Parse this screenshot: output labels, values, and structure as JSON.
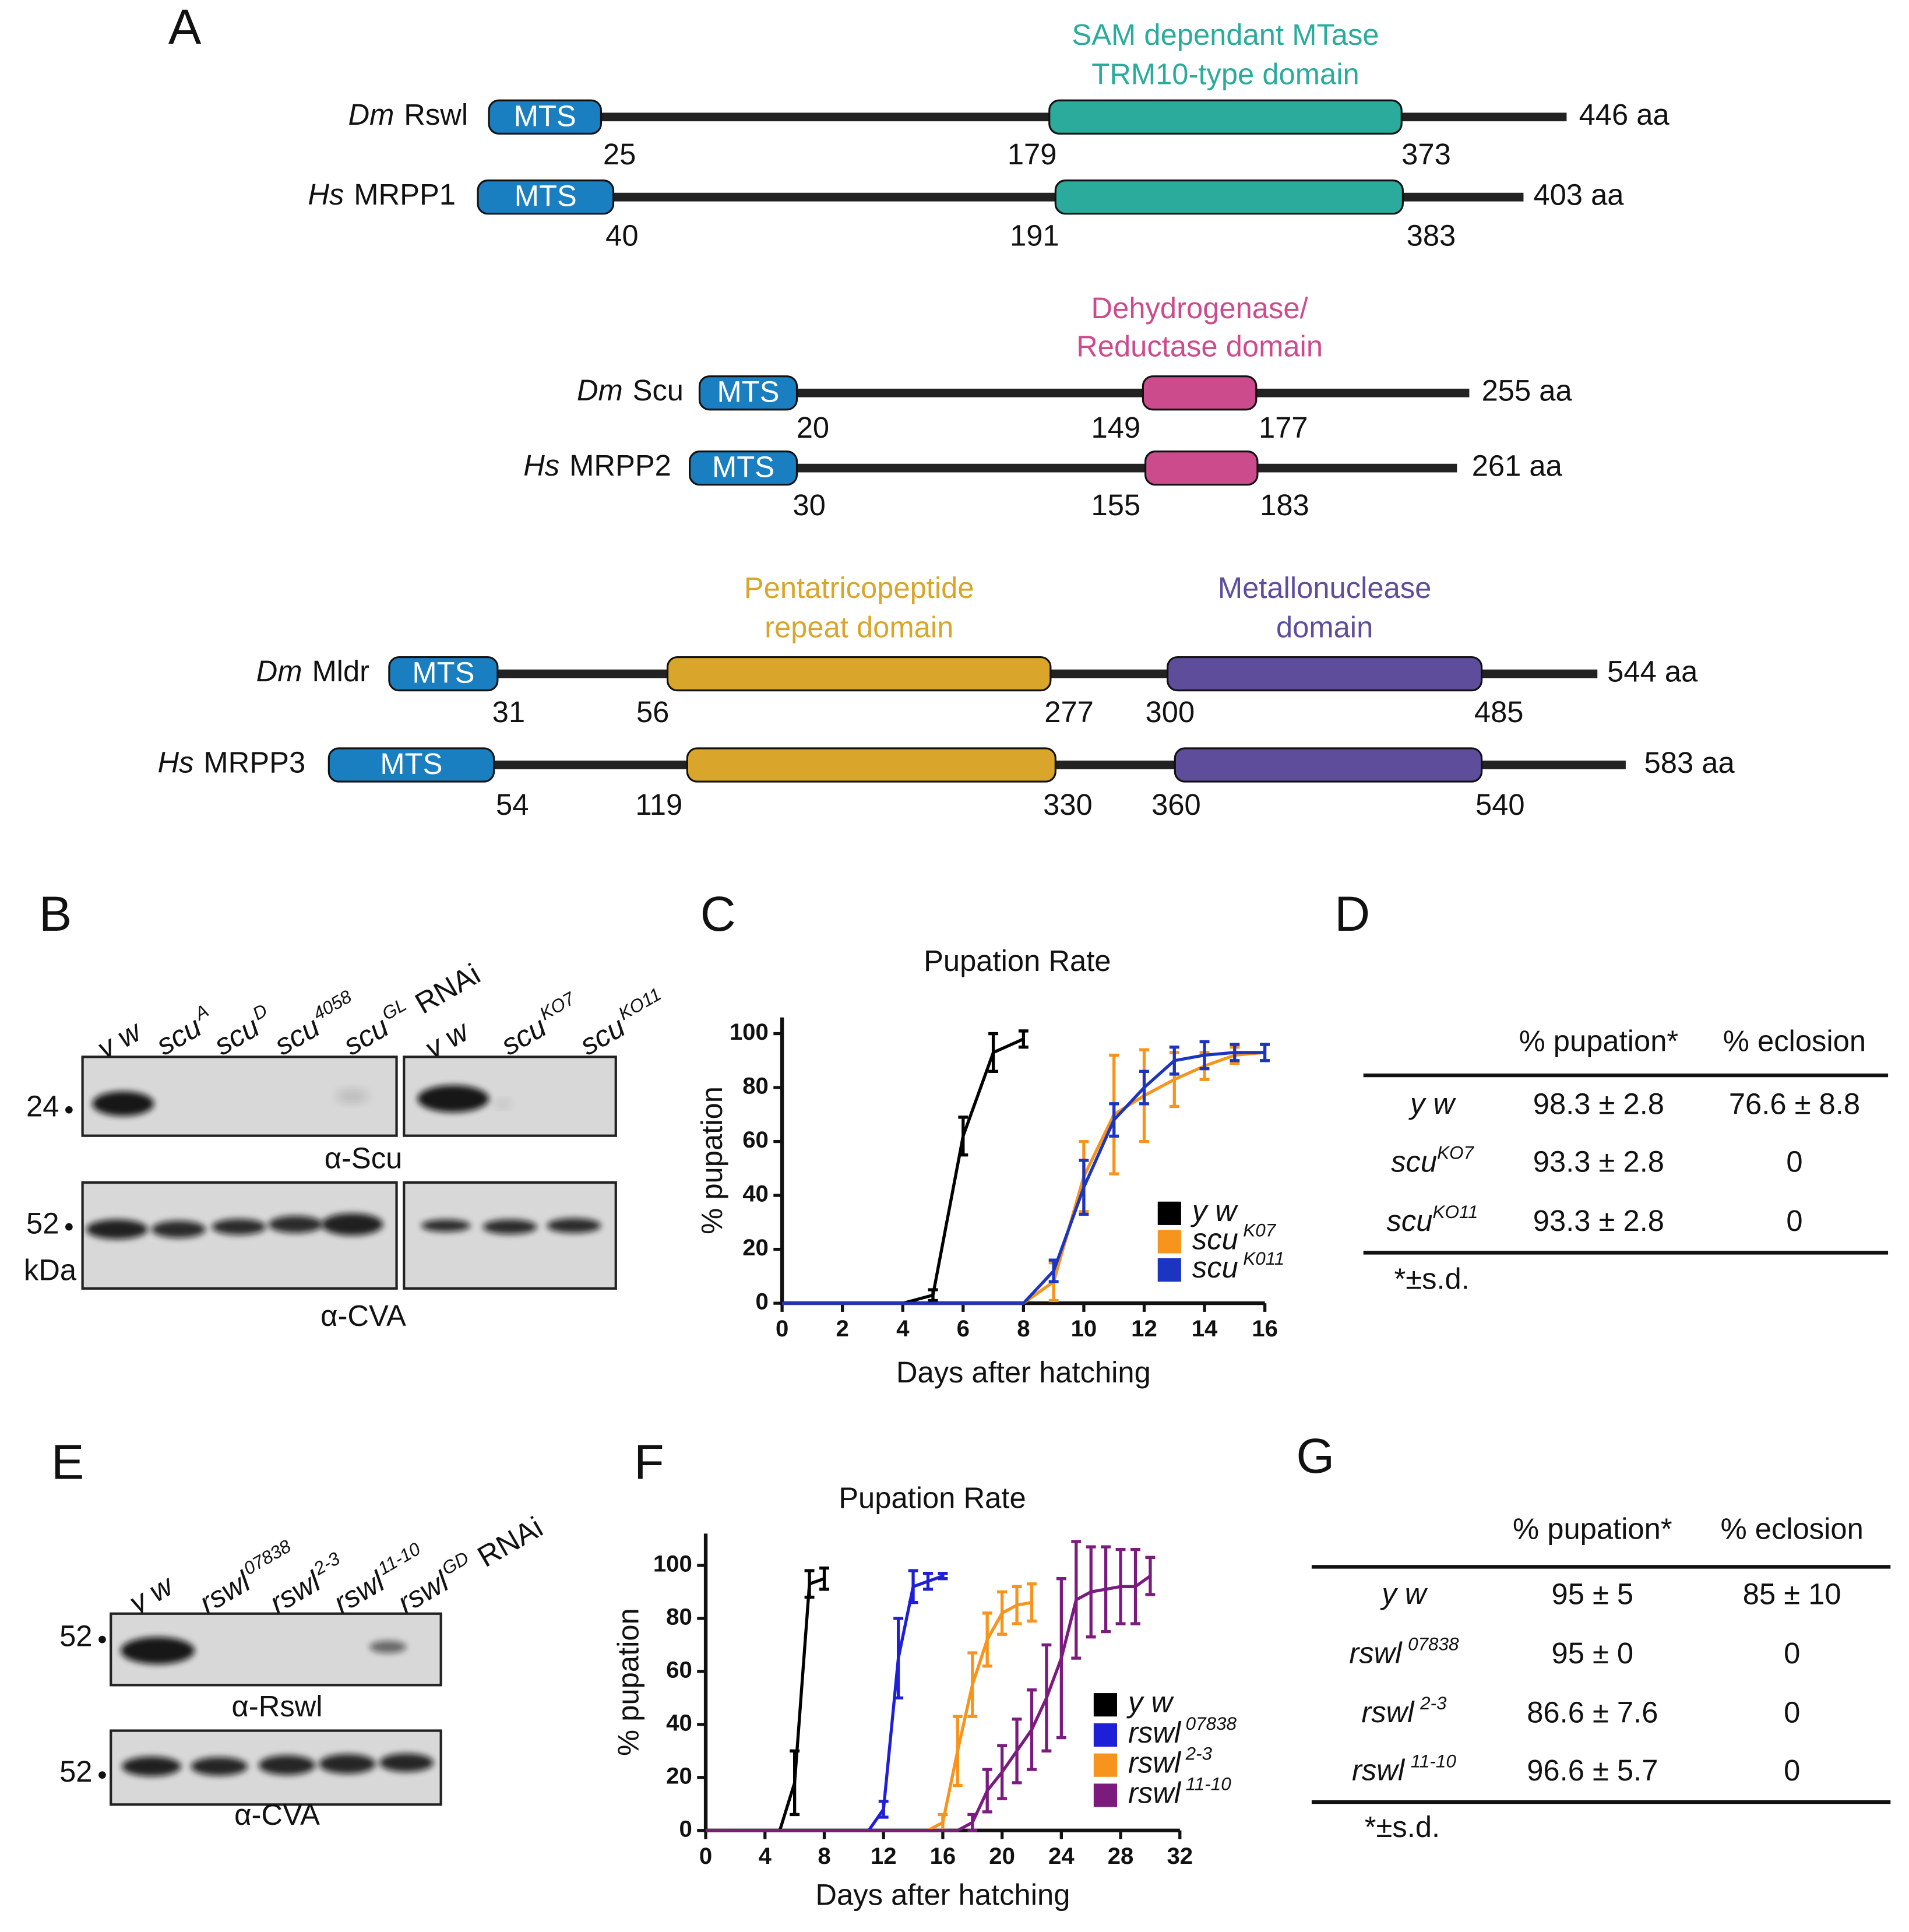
{
  "panel_a": {
    "label": "A",
    "mts_color": "#1a7fc0",
    "proteins": [
      {
        "species": "Dm",
        "name": "Rswl",
        "mts": "MTS",
        "positions": [
          25,
          179,
          373
        ],
        "length": "446 aa",
        "domains": [
          {
            "title": [
              "SAM dependant MTase",
              "TRM10-type domain"
            ],
            "color": "#2aab9c"
          }
        ]
      },
      {
        "species": "Hs",
        "name": "MRPP1",
        "mts": "MTS",
        "positions": [
          40,
          191,
          383
        ],
        "length": "403 aa",
        "domains": [
          {
            "color": "#2aab9c"
          }
        ]
      },
      {
        "species": "Dm",
        "name": "Scu",
        "mts": "MTS",
        "positions": [
          20,
          149,
          177
        ],
        "length": "255 aa",
        "domains": [
          {
            "title": [
              "Dehydrogenase/",
              "Reductase domain"
            ],
            "color": "#cc4b8c"
          }
        ]
      },
      {
        "species": "Hs",
        "name": "MRPP2",
        "mts": "MTS",
        "positions": [
          30,
          155,
          183
        ],
        "length": "261 aa",
        "domains": [
          {
            "color": "#cc4b8c"
          }
        ]
      },
      {
        "species": "Dm",
        "name": "Mldr",
        "mts": "MTS",
        "positions": [
          31,
          56,
          277,
          300,
          485
        ],
        "length": "544 aa",
        "domains": [
          {
            "title": [
              "Pentatricopeptide",
              "repeat domain"
            ],
            "color": "#d9a52a"
          },
          {
            "title": [
              "Metallonuclease",
              "domain"
            ],
            "color": "#5e4d9b"
          }
        ]
      },
      {
        "species": "Hs",
        "name": "MRPP3",
        "mts": "MTS",
        "positions": [
          54,
          119,
          330,
          360,
          540
        ],
        "length": "583 aa",
        "domains": [
          {
            "color": "#d9a52a"
          },
          {
            "color": "#5e4d9b"
          }
        ]
      }
    ]
  },
  "panel_b": {
    "label": "B",
    "lanes": [
      {
        "name": "y w"
      },
      {
        "name": "scu",
        "sup": "A"
      },
      {
        "name": "scu",
        "sup": "D"
      },
      {
        "name": "scu",
        "sup": "4058"
      },
      {
        "name": "scu",
        "sup": "GL",
        "suffix": "RNAi"
      },
      {
        "name": "y w"
      },
      {
        "name": "scu",
        "sup": "KO7"
      },
      {
        "name": "scu",
        "sup": "KO11"
      }
    ],
    "markers": [
      24,
      52
    ],
    "unit": "kDa",
    "antibodies": [
      "α-Scu",
      "α-CVA"
    ]
  },
  "panel_d": {
    "label": "D",
    "header": [
      "% pupation*",
      "% eclosion"
    ],
    "rows": [
      {
        "genotype": "y w",
        "pupation": "98.3 ± 2.8",
        "eclosion": "76.6 ± 8.8"
      },
      {
        "genotype": "scu",
        "sup": "KO7",
        "pupation": "93.3 ± 2.8",
        "eclosion": 0
      },
      {
        "genotype": "scu",
        "sup": "KO11",
        "pupation": "93.3 ± 2.8",
        "eclosion": 0
      }
    ],
    "footnote": "*±s.d."
  },
  "panel_e": {
    "label": "E",
    "lanes": [
      {
        "name": "y w"
      },
      {
        "name": "rswl",
        "sup": "07838"
      },
      {
        "name": "rswl",
        "sup": "2-3"
      },
      {
        "name": "rswl",
        "sup": "11-10"
      },
      {
        "name": "rswl",
        "sup": "GD",
        "suffix": "RNAi"
      }
    ],
    "markers": [
      52,
      52
    ],
    "antibodies": [
      "α-Rswl",
      "α-CVA"
    ]
  },
  "panel_g": {
    "label": "G",
    "header": [
      "% pupation*",
      "% eclosion"
    ],
    "rows": [
      {
        "genotype": "y w",
        "pupation": "95 ± 5",
        "eclosion": "85 ± 10"
      },
      {
        "genotype": "rswl",
        "sup": "07838",
        "pupation": "95 ± 0",
        "eclosion": 0
      },
      {
        "genotype": "rswl",
        "sup": "2-3",
        "pupation": "86.6 ± 7.6",
        "eclosion": 0
      },
      {
        "genotype": "rswl",
        "sup": "11-10",
        "pupation": "96.6 ± 5.7",
        "eclosion": 0
      }
    ],
    "footnote": "*±s.d."
  },
  "chart_data": [
    {
      "type": "line",
      "panel_label": "C",
      "title": "Pupation Rate",
      "x_label": "Days after hatching",
      "y_label": "% pupation",
      "x": [
        0,
        1,
        2,
        3,
        4,
        5,
        6,
        7,
        8,
        9,
        10,
        11,
        12,
        13,
        14,
        15,
        16
      ],
      "xlim": [
        0,
        16
      ],
      "xticks": [
        0,
        2,
        4,
        6,
        8,
        10,
        12,
        14,
        16
      ],
      "ylim": [
        0,
        106
      ],
      "yticks": [
        0,
        20,
        40,
        60,
        80,
        100
      ],
      "series": [
        {
          "name": "y w",
          "color": "#000000",
          "values": [
            0,
            0,
            0,
            0,
            0,
            3,
            62,
            93,
            98,
            null,
            null,
            null,
            null,
            null,
            null,
            null,
            null
          ],
          "errors": [
            null,
            null,
            null,
            null,
            null,
            2,
            7,
            7,
            3,
            null,
            null,
            null,
            null,
            null,
            null,
            null,
            null
          ]
        },
        {
          "name": "scu",
          "name_sup": "K07",
          "color": "#f7941d",
          "values": [
            0,
            0,
            0,
            0,
            0,
            0,
            0,
            0,
            0,
            8,
            47,
            70,
            77,
            83,
            88,
            92,
            93
          ],
          "errors": [
            null,
            null,
            null,
            null,
            null,
            null,
            null,
            null,
            null,
            7,
            13,
            22,
            17,
            10,
            5,
            3,
            3
          ]
        },
        {
          "name": "scu",
          "name_sup": "K011",
          "color": "#1c35c0",
          "values": [
            0,
            0,
            0,
            0,
            0,
            0,
            0,
            0,
            0,
            12,
            43,
            68,
            80,
            90,
            92,
            93,
            93
          ],
          "errors": [
            null,
            null,
            null,
            null,
            null,
            null,
            null,
            null,
            null,
            4,
            10,
            6,
            6,
            5,
            5,
            3,
            3
          ]
        }
      ]
    },
    {
      "type": "line",
      "panel_label": "F",
      "title": "Pupation Rate",
      "x_label": "Days after hatching",
      "y_label": "% pupation",
      "x": [
        0,
        1,
        2,
        3,
        4,
        5,
        6,
        7,
        8,
        9,
        10,
        11,
        12,
        13,
        14,
        15,
        16,
        17,
        18,
        19,
        20,
        21,
        22,
        23,
        24,
        25,
        26,
        27,
        28,
        29,
        30
      ],
      "xlim": [
        0,
        32
      ],
      "xticks": [
        0,
        4,
        8,
        12,
        16,
        20,
        24,
        28,
        32
      ],
      "ylim": [
        0,
        112
      ],
      "yticks": [
        0,
        20,
        40,
        60,
        80,
        100
      ],
      "series": [
        {
          "name": "y w",
          "color": "#000000",
          "values": [
            0,
            0,
            0,
            0,
            0,
            0,
            18,
            93,
            95,
            null,
            null,
            null,
            null,
            null,
            null,
            null,
            null,
            null,
            null,
            null,
            null,
            null,
            null,
            null,
            null,
            null,
            null,
            null,
            null,
            null,
            null
          ],
          "errors": [
            null,
            null,
            null,
            null,
            null,
            null,
            12,
            5,
            4,
            null,
            null,
            null,
            null,
            null,
            null,
            null,
            null,
            null,
            null,
            null,
            null,
            null,
            null,
            null,
            null,
            null,
            null,
            null,
            null,
            null,
            null
          ]
        },
        {
          "name": "rswl",
          "name_sup": "07838",
          "color": "#1f1fd8",
          "values": [
            0,
            0,
            0,
            0,
            0,
            0,
            0,
            0,
            0,
            0,
            0,
            0,
            8,
            65,
            92,
            94,
            96,
            null,
            null,
            null,
            null,
            null,
            null,
            null,
            null,
            null,
            null,
            null,
            null,
            null,
            null
          ],
          "errors": [
            null,
            null,
            null,
            null,
            null,
            null,
            null,
            null,
            null,
            null,
            null,
            null,
            3,
            15,
            6,
            3,
            1,
            null,
            null,
            null,
            null,
            null,
            null,
            null,
            null,
            null,
            null,
            null,
            null,
            null,
            null
          ]
        },
        {
          "name": "rswl",
          "name_sup": "2-3",
          "color": "#f7941d",
          "values": [
            0,
            0,
            0,
            0,
            0,
            0,
            0,
            0,
            0,
            0,
            0,
            0,
            0,
            0,
            0,
            0,
            3,
            30,
            55,
            72,
            82,
            85,
            86,
            null,
            null,
            null,
            null,
            null,
            null,
            null,
            null
          ],
          "errors": [
            null,
            null,
            null,
            null,
            null,
            null,
            null,
            null,
            null,
            null,
            null,
            null,
            null,
            null,
            null,
            null,
            3,
            13,
            12,
            10,
            8,
            7,
            7,
            null,
            null,
            null,
            null,
            null,
            null,
            null,
            null
          ]
        },
        {
          "name": "rswl",
          "name_sup": "11-10",
          "color": "#7b1b7e",
          "values": [
            0,
            0,
            0,
            0,
            0,
            0,
            0,
            0,
            0,
            0,
            0,
            0,
            0,
            0,
            0,
            0,
            0,
            0,
            3,
            15,
            22,
            30,
            38,
            50,
            65,
            87,
            90,
            91,
            92,
            92,
            96
          ],
          "errors": [
            null,
            null,
            null,
            null,
            null,
            null,
            null,
            null,
            null,
            null,
            null,
            null,
            null,
            null,
            null,
            null,
            null,
            null,
            3,
            8,
            10,
            12,
            15,
            20,
            30,
            22,
            17,
            16,
            14,
            14,
            7
          ]
        }
      ]
    }
  ]
}
